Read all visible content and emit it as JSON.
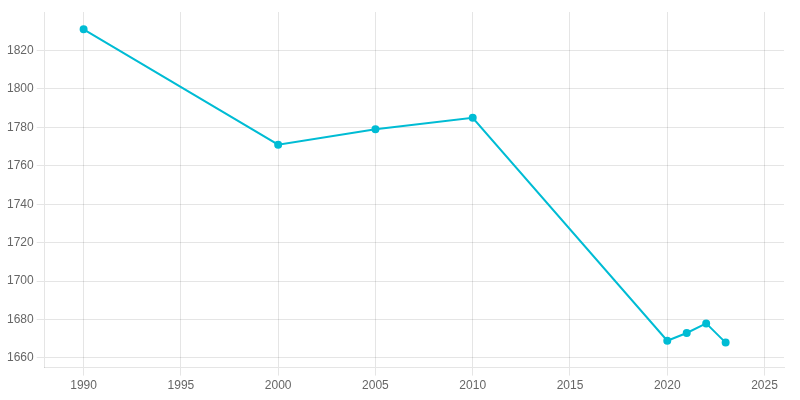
{
  "chart_data": {
    "type": "line",
    "x": [
      1990,
      2000,
      2005,
      2010,
      2020,
      2021,
      2022,
      2023
    ],
    "values": [
      1831,
      1771,
      1779,
      1785,
      1669,
      1673,
      1678,
      1668
    ],
    "color": "#00BCD4",
    "marker": "circle",
    "xlim": [
      1988,
      2026
    ],
    "ylim": [
      1655,
      1840
    ],
    "xticks": [
      1990,
      1995,
      2000,
      2005,
      2010,
      2015,
      2020,
      2025
    ],
    "yticks": [
      1660,
      1680,
      1700,
      1720,
      1740,
      1760,
      1780,
      1800,
      1820
    ],
    "grid": true
  }
}
